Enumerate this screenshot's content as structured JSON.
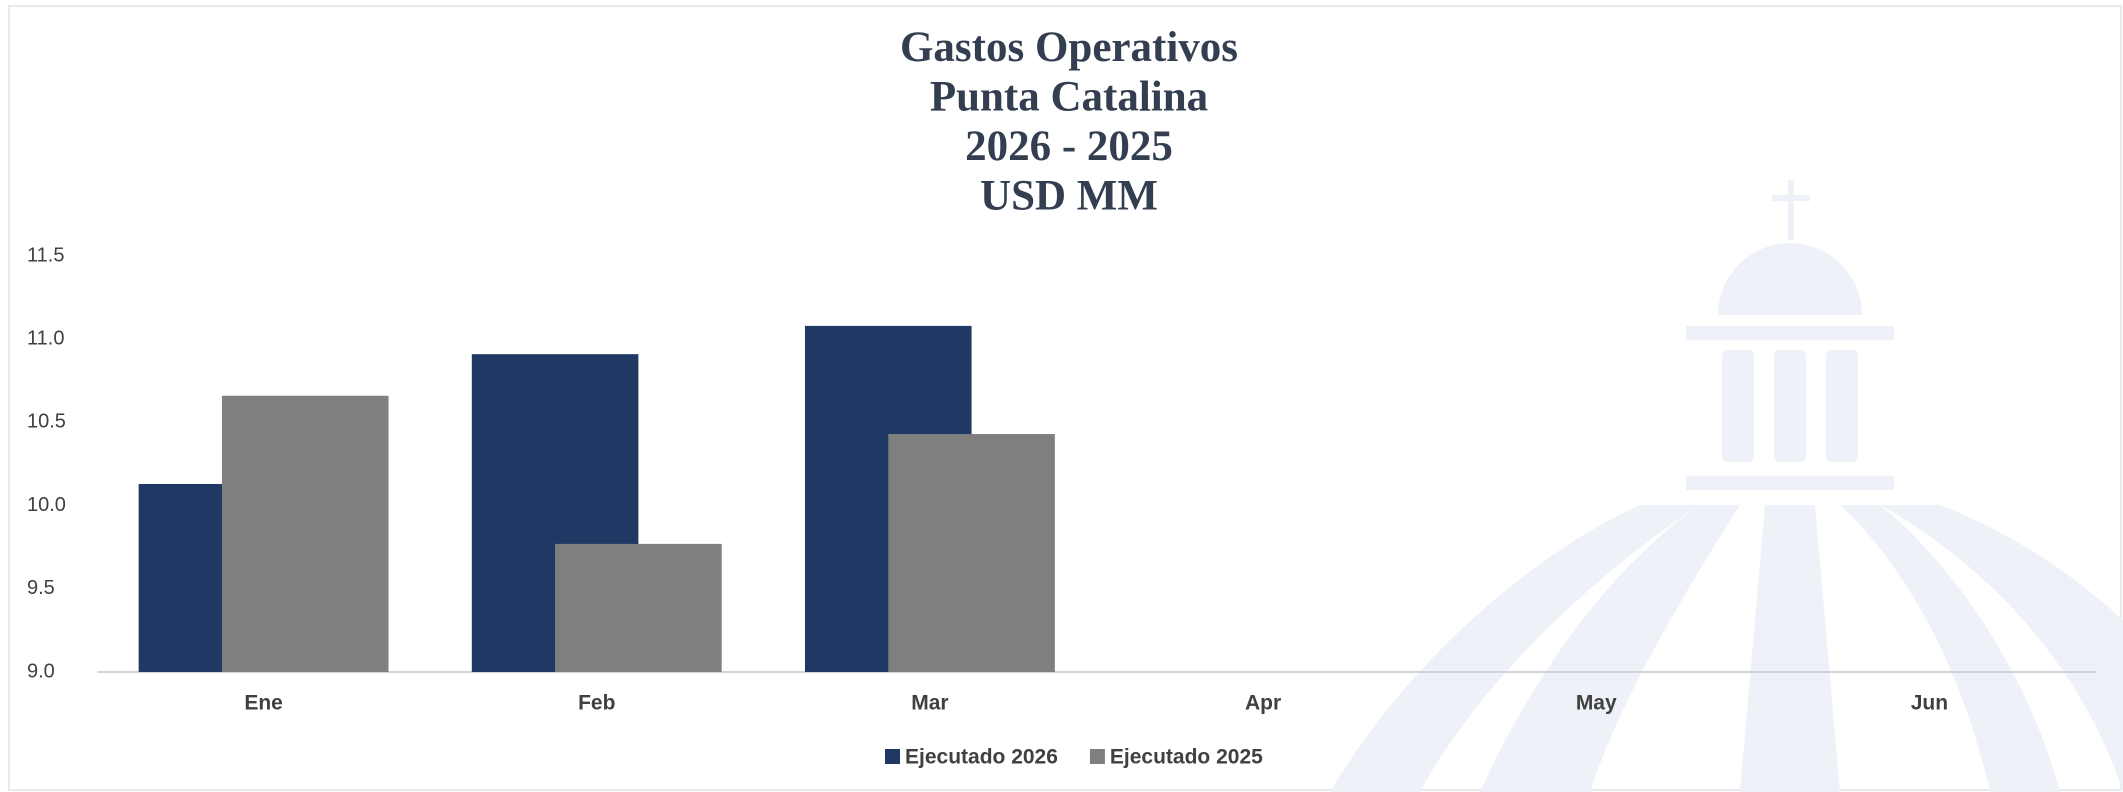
{
  "chart_data": {
    "type": "bar",
    "title": [
      "Gastos Operativos",
      "Punta Catalina",
      "2026 - 2025",
      "USD MM"
    ],
    "categories": [
      "Ene",
      "Feb",
      "Mar",
      "Apr",
      "May",
      "Jun"
    ],
    "series": [
      {
        "name": "Ejecutado 2026",
        "color": "#1f3864",
        "values": [
          10.13,
          10.91,
          11.08,
          null,
          null,
          null
        ]
      },
      {
        "name": "Ejecutado 2025",
        "color": "#7f7f7f",
        "values": [
          10.66,
          9.77,
          10.43,
          null,
          null,
          null
        ]
      }
    ],
    "ylim": [
      9,
      11.5
    ],
    "yticks": [
      {
        "value": 9,
        "label": "9.0"
      },
      9.5,
      {
        "value": 10,
        "label": "10.0"
      },
      10.5,
      {
        "value": 11,
        "label": "11.0"
      },
      11.5
    ],
    "grid": false
  }
}
